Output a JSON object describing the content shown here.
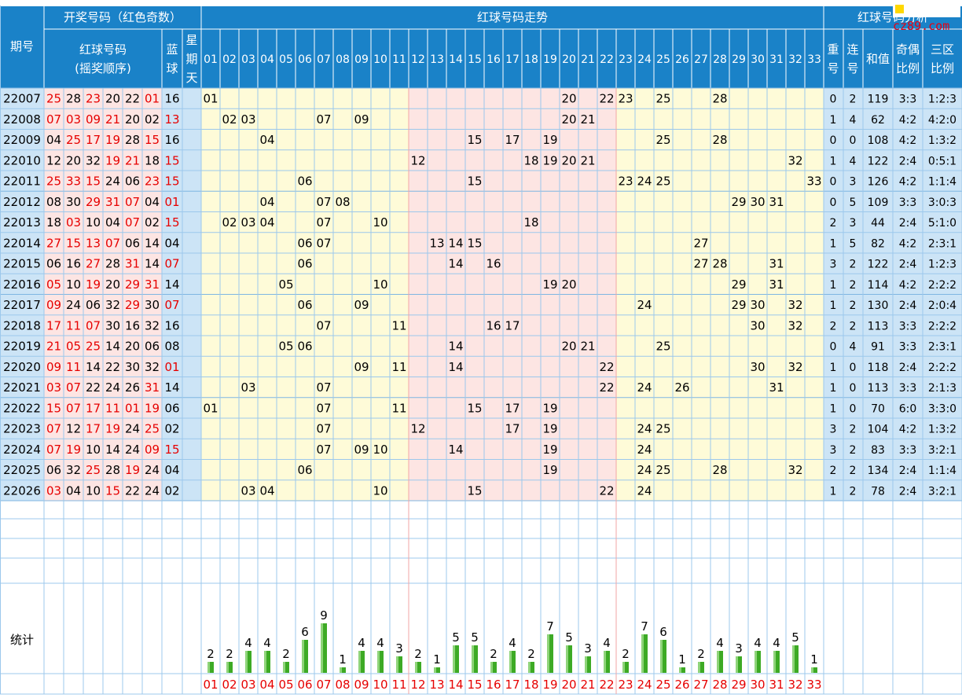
{
  "header": {
    "issue": "期号",
    "draw_group": "开奖号码（红色奇数）",
    "red_numbers_line1": "红球号码",
    "red_numbers_line2": "(摇奖顺序)",
    "blue": [
      "蓝",
      "球"
    ],
    "weekday": [
      "星",
      "期",
      "天"
    ],
    "trend": "红球号码走势",
    "analysis": "红球号码分析",
    "repeat": [
      "重",
      "号"
    ],
    "consecutive": [
      "连",
      "号"
    ],
    "sum": "和值",
    "odd_even": [
      "奇偶",
      "比例"
    ],
    "zones": [
      "三区",
      "比例"
    ]
  },
  "ball_labels": [
    "01",
    "02",
    "03",
    "04",
    "05",
    "06",
    "07",
    "08",
    "09",
    "10",
    "11",
    "12",
    "13",
    "14",
    "15",
    "16",
    "17",
    "18",
    "19",
    "20",
    "21",
    "22",
    "23",
    "24",
    "25",
    "26",
    "27",
    "28",
    "29",
    "30",
    "31",
    "32",
    "33"
  ],
  "rows": [
    {
      "issue": "22007",
      "reds": [
        "25",
        "28",
        "23",
        "20",
        "22",
        "01"
      ],
      "blue": "16",
      "repeat": "0",
      "consecutive": "2",
      "sum": "119",
      "odd_even": "3:3",
      "zones": "1:2:3"
    },
    {
      "issue": "22008",
      "reds": [
        "07",
        "03",
        "09",
        "21",
        "20",
        "02"
      ],
      "blue": "13",
      "repeat": "1",
      "consecutive": "4",
      "sum": "62",
      "odd_even": "4:2",
      "zones": "4:2:0"
    },
    {
      "issue": "22009",
      "reds": [
        "04",
        "25",
        "17",
        "19",
        "28",
        "15"
      ],
      "blue": "16",
      "repeat": "0",
      "consecutive": "0",
      "sum": "108",
      "odd_even": "4:2",
      "zones": "1:3:2"
    },
    {
      "issue": "22010",
      "reds": [
        "12",
        "20",
        "32",
        "19",
        "21",
        "18"
      ],
      "blue": "15",
      "repeat": "1",
      "consecutive": "4",
      "sum": "122",
      "odd_even": "2:4",
      "zones": "0:5:1"
    },
    {
      "issue": "22011",
      "reds": [
        "25",
        "33",
        "15",
        "24",
        "06",
        "23"
      ],
      "blue": "15",
      "repeat": "0",
      "consecutive": "3",
      "sum": "126",
      "odd_even": "4:2",
      "zones": "1:1:4"
    },
    {
      "issue": "22012",
      "reds": [
        "08",
        "30",
        "29",
        "31",
        "07",
        "04"
      ],
      "blue": "01",
      "repeat": "0",
      "consecutive": "5",
      "sum": "109",
      "odd_even": "3:3",
      "zones": "3:0:3"
    },
    {
      "issue": "22013",
      "reds": [
        "18",
        "03",
        "10",
        "04",
        "07",
        "02"
      ],
      "blue": "15",
      "repeat": "2",
      "consecutive": "3",
      "sum": "44",
      "odd_even": "2:4",
      "zones": "5:1:0"
    },
    {
      "issue": "22014",
      "reds": [
        "27",
        "15",
        "13",
        "07",
        "06",
        "14"
      ],
      "blue": "04",
      "repeat": "1",
      "consecutive": "5",
      "sum": "82",
      "odd_even": "4:2",
      "zones": "2:3:1"
    },
    {
      "issue": "22015",
      "reds": [
        "06",
        "16",
        "27",
        "28",
        "31",
        "14"
      ],
      "blue": "07",
      "repeat": "3",
      "consecutive": "2",
      "sum": "122",
      "odd_even": "2:4",
      "zones": "1:2:3"
    },
    {
      "issue": "22016",
      "reds": [
        "05",
        "10",
        "19",
        "20",
        "29",
        "31"
      ],
      "blue": "14",
      "repeat": "1",
      "consecutive": "2",
      "sum": "114",
      "odd_even": "4:2",
      "zones": "2:2:2"
    },
    {
      "issue": "22017",
      "reds": [
        "09",
        "24",
        "06",
        "32",
        "29",
        "30"
      ],
      "blue": "07",
      "repeat": "1",
      "consecutive": "2",
      "sum": "130",
      "odd_even": "2:4",
      "zones": "2:0:4"
    },
    {
      "issue": "22018",
      "reds": [
        "17",
        "11",
        "07",
        "30",
        "16",
        "32"
      ],
      "blue": "16",
      "repeat": "2",
      "consecutive": "2",
      "sum": "113",
      "odd_even": "3:3",
      "zones": "2:2:2"
    },
    {
      "issue": "22019",
      "reds": [
        "21",
        "05",
        "25",
        "14",
        "20",
        "06"
      ],
      "blue": "08",
      "repeat": "0",
      "consecutive": "4",
      "sum": "91",
      "odd_even": "3:3",
      "zones": "2:3:1"
    },
    {
      "issue": "22020",
      "reds": [
        "09",
        "11",
        "14",
        "22",
        "30",
        "32"
      ],
      "blue": "01",
      "repeat": "1",
      "consecutive": "0",
      "sum": "118",
      "odd_even": "2:4",
      "zones": "2:2:2"
    },
    {
      "issue": "22021",
      "reds": [
        "03",
        "07",
        "22",
        "24",
        "26",
        "31"
      ],
      "blue": "14",
      "repeat": "1",
      "consecutive": "0",
      "sum": "113",
      "odd_even": "3:3",
      "zones": "2:1:3"
    },
    {
      "issue": "22022",
      "reds": [
        "15",
        "07",
        "17",
        "11",
        "01",
        "19"
      ],
      "blue": "06",
      "repeat": "1",
      "consecutive": "0",
      "sum": "70",
      "odd_even": "6:0",
      "zones": "3:3:0"
    },
    {
      "issue": "22023",
      "reds": [
        "07",
        "12",
        "17",
        "19",
        "24",
        "25"
      ],
      "blue": "02",
      "repeat": "3",
      "consecutive": "2",
      "sum": "104",
      "odd_even": "4:2",
      "zones": "1:3:2"
    },
    {
      "issue": "22024",
      "reds": [
        "07",
        "19",
        "10",
        "14",
        "24",
        "09"
      ],
      "blue": "15",
      "repeat": "3",
      "consecutive": "2",
      "sum": "83",
      "odd_even": "3:3",
      "zones": "3:2:1"
    },
    {
      "issue": "22025",
      "reds": [
        "06",
        "32",
        "25",
        "28",
        "19",
        "24"
      ],
      "blue": "04",
      "repeat": "2",
      "consecutive": "2",
      "sum": "134",
      "odd_even": "2:4",
      "zones": "1:1:4"
    },
    {
      "issue": "22026",
      "reds": [
        "03",
        "04",
        "10",
        "15",
        "22",
        "24"
      ],
      "blue": "02",
      "repeat": "1",
      "consecutive": "2",
      "sum": "78",
      "odd_even": "2:4",
      "zones": "3:2:1"
    }
  ],
  "stats_label": "统计",
  "chart_data": {
    "type": "bar",
    "categories": [
      "01",
      "02",
      "03",
      "04",
      "05",
      "06",
      "07",
      "08",
      "09",
      "10",
      "11",
      "12",
      "13",
      "14",
      "15",
      "16",
      "17",
      "18",
      "19",
      "20",
      "21",
      "22",
      "23",
      "24",
      "25",
      "26",
      "27",
      "28",
      "29",
      "30",
      "31",
      "32",
      "33"
    ],
    "values": [
      2,
      2,
      4,
      4,
      2,
      6,
      9,
      1,
      4,
      4,
      3,
      2,
      1,
      5,
      5,
      2,
      4,
      2,
      7,
      5,
      3,
      4,
      2,
      7,
      6,
      1,
      2,
      4,
      3,
      4,
      4,
      5,
      1
    ],
    "title": "",
    "xlabel": "",
    "ylabel": ""
  },
  "colors": {
    "header_bg": "#1a82c8",
    "grid_line": "#9cc8ec",
    "cream": "#fefbd8",
    "pink": "#fde5e3",
    "light_blue": "#cce4f6",
    "odd_red": "#e60000",
    "bar_green": "#3daa25"
  },
  "logo": "cz89.com"
}
